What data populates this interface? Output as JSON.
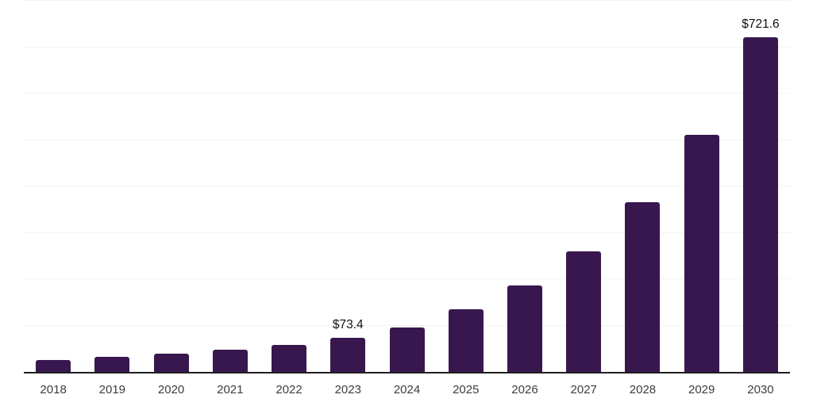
{
  "chart_data": {
    "type": "bar",
    "title": "",
    "xlabel": "",
    "ylabel": "",
    "categories": [
      "2018",
      "2019",
      "2020",
      "2021",
      "2022",
      "2023",
      "2024",
      "2025",
      "2026",
      "2027",
      "2028",
      "2029",
      "2030"
    ],
    "values": [
      26.1,
      31.9,
      38.8,
      47.3,
      57.9,
      73.4,
      95.8,
      134.3,
      186.2,
      259.7,
      366.2,
      511.9,
      721.6
    ],
    "data_labels": {
      "2023": "$73.4",
      "2030": "$721.6"
    },
    "ylim": [
      0,
      800
    ],
    "gridline_step": 100,
    "grid": true,
    "legend_position": "none",
    "y_tick_labels_visible": false,
    "colors": {
      "bar": "#38174E",
      "axis_line": "#1f1f1f",
      "gridline": "#f2f2f2",
      "x_tick_label": "#3c3c3c",
      "data_label": "#111111",
      "background": "#ffffff"
    }
  }
}
